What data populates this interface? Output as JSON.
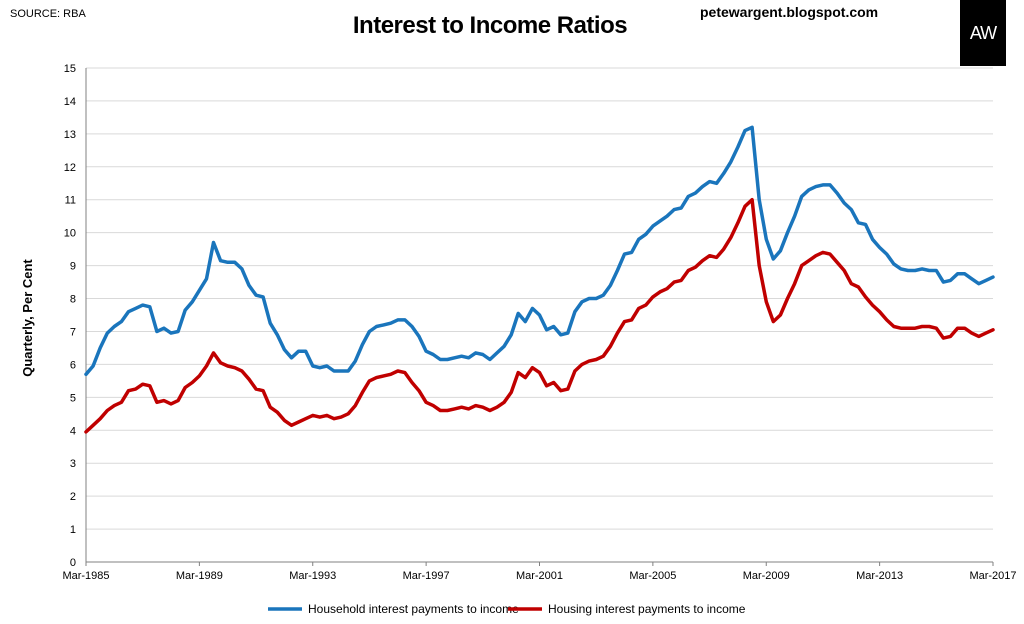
{
  "header": {
    "source": "SOURCE: RBA",
    "title": "Interest to Income Ratios",
    "blog": "petewargent.blogspot.com",
    "logo_text": "AW"
  },
  "colors": {
    "household": "#1a75bc",
    "housing": "#c00000",
    "grid": "#d9d9d9",
    "logo_bg": "#000000"
  },
  "chart_data": {
    "type": "line",
    "title": "Interest to Income Ratios",
    "xlabel": "",
    "ylabel": "Quarterly, Per Cent",
    "ylim": [
      0,
      15
    ],
    "yticks": [
      0,
      1,
      2,
      3,
      4,
      5,
      6,
      7,
      8,
      9,
      10,
      11,
      12,
      13,
      14,
      15
    ],
    "xlim": [
      1985.0,
      2017.0
    ],
    "xticks": [
      {
        "x": 1985,
        "label": "Mar-1985"
      },
      {
        "x": 1989,
        "label": "Mar-1989"
      },
      {
        "x": 1993,
        "label": "Mar-1993"
      },
      {
        "x": 1997,
        "label": "Mar-1997"
      },
      {
        "x": 2001,
        "label": "Mar-2001"
      },
      {
        "x": 2005,
        "label": "Mar-2005"
      },
      {
        "x": 2009,
        "label": "Mar-2009"
      },
      {
        "x": 2013,
        "label": "Mar-2013"
      },
      {
        "x": 2017,
        "label": "Mar-2017"
      }
    ],
    "grid": true,
    "legend": "bottom",
    "series": [
      {
        "name": "Household interest payments to income",
        "color": "#1a75bc",
        "points": [
          [
            1985.0,
            5.7
          ],
          [
            1985.25,
            5.95
          ],
          [
            1985.5,
            6.5
          ],
          [
            1985.75,
            6.95
          ],
          [
            1986.0,
            7.15
          ],
          [
            1986.25,
            7.3
          ],
          [
            1986.5,
            7.6
          ],
          [
            1986.75,
            7.7
          ],
          [
            1987.0,
            7.8
          ],
          [
            1987.25,
            7.75
          ],
          [
            1987.5,
            7.0
          ],
          [
            1987.75,
            7.1
          ],
          [
            1988.0,
            6.95
          ],
          [
            1988.25,
            7.0
          ],
          [
            1988.5,
            7.65
          ],
          [
            1988.75,
            7.9
          ],
          [
            1989.0,
            8.25
          ],
          [
            1989.25,
            8.6
          ],
          [
            1989.5,
            9.7
          ],
          [
            1989.75,
            9.15
          ],
          [
            1990.0,
            9.1
          ],
          [
            1990.25,
            9.1
          ],
          [
            1990.5,
            8.9
          ],
          [
            1990.75,
            8.4
          ],
          [
            1991.0,
            8.1
          ],
          [
            1991.25,
            8.05
          ],
          [
            1991.5,
            7.25
          ],
          [
            1991.75,
            6.9
          ],
          [
            1992.0,
            6.45
          ],
          [
            1992.25,
            6.2
          ],
          [
            1992.5,
            6.4
          ],
          [
            1992.75,
            6.4
          ],
          [
            1993.0,
            5.95
          ],
          [
            1993.25,
            5.9
          ],
          [
            1993.5,
            5.95
          ],
          [
            1993.75,
            5.8
          ],
          [
            1994.0,
            5.8
          ],
          [
            1994.25,
            5.8
          ],
          [
            1994.5,
            6.1
          ],
          [
            1994.75,
            6.6
          ],
          [
            1995.0,
            7.0
          ],
          [
            1995.25,
            7.15
          ],
          [
            1995.5,
            7.2
          ],
          [
            1995.75,
            7.25
          ],
          [
            1996.0,
            7.35
          ],
          [
            1996.25,
            7.35
          ],
          [
            1996.5,
            7.15
          ],
          [
            1996.75,
            6.85
          ],
          [
            1997.0,
            6.4
          ],
          [
            1997.25,
            6.3
          ],
          [
            1997.5,
            6.15
          ],
          [
            1997.75,
            6.15
          ],
          [
            1998.0,
            6.2
          ],
          [
            1998.25,
            6.25
          ],
          [
            1998.5,
            6.2
          ],
          [
            1998.75,
            6.35
          ],
          [
            1999.0,
            6.3
          ],
          [
            1999.25,
            6.15
          ],
          [
            1999.5,
            6.35
          ],
          [
            1999.75,
            6.55
          ],
          [
            2000.0,
            6.9
          ],
          [
            2000.25,
            7.55
          ],
          [
            2000.5,
            7.3
          ],
          [
            2000.75,
            7.7
          ],
          [
            2001.0,
            7.5
          ],
          [
            2001.25,
            7.05
          ],
          [
            2001.5,
            7.15
          ],
          [
            2001.75,
            6.9
          ],
          [
            2002.0,
            6.95
          ],
          [
            2002.25,
            7.6
          ],
          [
            2002.5,
            7.9
          ],
          [
            2002.75,
            8.0
          ],
          [
            2003.0,
            8.0
          ],
          [
            2003.25,
            8.1
          ],
          [
            2003.5,
            8.4
          ],
          [
            2003.75,
            8.85
          ],
          [
            2004.0,
            9.35
          ],
          [
            2004.25,
            9.4
          ],
          [
            2004.5,
            9.8
          ],
          [
            2004.75,
            9.95
          ],
          [
            2005.0,
            10.2
          ],
          [
            2005.25,
            10.35
          ],
          [
            2005.5,
            10.5
          ],
          [
            2005.75,
            10.7
          ],
          [
            2006.0,
            10.75
          ],
          [
            2006.25,
            11.1
          ],
          [
            2006.5,
            11.2
          ],
          [
            2006.75,
            11.4
          ],
          [
            2007.0,
            11.55
          ],
          [
            2007.25,
            11.5
          ],
          [
            2007.5,
            11.8
          ],
          [
            2007.75,
            12.15
          ],
          [
            2008.0,
            12.6
          ],
          [
            2008.25,
            13.1
          ],
          [
            2008.5,
            13.2
          ],
          [
            2008.75,
            11.0
          ],
          [
            2009.0,
            9.8
          ],
          [
            2009.25,
            9.2
          ],
          [
            2009.5,
            9.45
          ],
          [
            2009.75,
            10.0
          ],
          [
            2010.0,
            10.5
          ],
          [
            2010.25,
            11.1
          ],
          [
            2010.5,
            11.3
          ],
          [
            2010.75,
            11.4
          ],
          [
            2011.0,
            11.45
          ],
          [
            2011.25,
            11.45
          ],
          [
            2011.5,
            11.2
          ],
          [
            2011.75,
            10.9
          ],
          [
            2012.0,
            10.7
          ],
          [
            2012.25,
            10.3
          ],
          [
            2012.5,
            10.25
          ],
          [
            2012.75,
            9.8
          ],
          [
            2013.0,
            9.55
          ],
          [
            2013.25,
            9.35
          ],
          [
            2013.5,
            9.05
          ],
          [
            2013.75,
            8.9
          ],
          [
            2014.0,
            8.85
          ],
          [
            2014.25,
            8.85
          ],
          [
            2014.5,
            8.9
          ],
          [
            2014.75,
            8.85
          ],
          [
            2015.0,
            8.85
          ],
          [
            2015.25,
            8.5
          ],
          [
            2015.5,
            8.55
          ],
          [
            2015.75,
            8.75
          ],
          [
            2016.0,
            8.75
          ],
          [
            2016.25,
            8.6
          ],
          [
            2016.5,
            8.45
          ],
          [
            2016.75,
            8.55
          ],
          [
            2017.0,
            8.65
          ]
        ]
      },
      {
        "name": "Housing interest payments to income",
        "color": "#c00000",
        "points": [
          [
            1985.0,
            3.95
          ],
          [
            1985.25,
            4.15
          ],
          [
            1985.5,
            4.35
          ],
          [
            1985.75,
            4.6
          ],
          [
            1986.0,
            4.75
          ],
          [
            1986.25,
            4.85
          ],
          [
            1986.5,
            5.2
          ],
          [
            1986.75,
            5.25
          ],
          [
            1987.0,
            5.4
          ],
          [
            1987.25,
            5.35
          ],
          [
            1987.5,
            4.85
          ],
          [
            1987.75,
            4.9
          ],
          [
            1988.0,
            4.8
          ],
          [
            1988.25,
            4.9
          ],
          [
            1988.5,
            5.3
          ],
          [
            1988.75,
            5.45
          ],
          [
            1989.0,
            5.65
          ],
          [
            1989.25,
            5.95
          ],
          [
            1989.5,
            6.35
          ],
          [
            1989.75,
            6.05
          ],
          [
            1990.0,
            5.95
          ],
          [
            1990.25,
            5.9
          ],
          [
            1990.5,
            5.8
          ],
          [
            1990.75,
            5.55
          ],
          [
            1991.0,
            5.25
          ],
          [
            1991.25,
            5.2
          ],
          [
            1991.5,
            4.7
          ],
          [
            1991.75,
            4.55
          ],
          [
            1992.0,
            4.3
          ],
          [
            1992.25,
            4.15
          ],
          [
            1992.5,
            4.25
          ],
          [
            1992.75,
            4.35
          ],
          [
            1993.0,
            4.45
          ],
          [
            1993.25,
            4.4
          ],
          [
            1993.5,
            4.45
          ],
          [
            1993.75,
            4.35
          ],
          [
            1994.0,
            4.4
          ],
          [
            1994.25,
            4.5
          ],
          [
            1994.5,
            4.75
          ],
          [
            1994.75,
            5.15
          ],
          [
            1995.0,
            5.5
          ],
          [
            1995.25,
            5.6
          ],
          [
            1995.5,
            5.65
          ],
          [
            1995.75,
            5.7
          ],
          [
            1996.0,
            5.8
          ],
          [
            1996.25,
            5.75
          ],
          [
            1996.5,
            5.45
          ],
          [
            1996.75,
            5.2
          ],
          [
            1997.0,
            4.85
          ],
          [
            1997.25,
            4.75
          ],
          [
            1997.5,
            4.6
          ],
          [
            1997.75,
            4.6
          ],
          [
            1998.0,
            4.65
          ],
          [
            1998.25,
            4.7
          ],
          [
            1998.5,
            4.65
          ],
          [
            1998.75,
            4.75
          ],
          [
            1999.0,
            4.7
          ],
          [
            1999.25,
            4.6
          ],
          [
            1999.5,
            4.7
          ],
          [
            1999.75,
            4.85
          ],
          [
            2000.0,
            5.15
          ],
          [
            2000.25,
            5.75
          ],
          [
            2000.5,
            5.6
          ],
          [
            2000.75,
            5.9
          ],
          [
            2001.0,
            5.75
          ],
          [
            2001.25,
            5.35
          ],
          [
            2001.5,
            5.45
          ],
          [
            2001.75,
            5.2
          ],
          [
            2002.0,
            5.25
          ],
          [
            2002.25,
            5.8
          ],
          [
            2002.5,
            6.0
          ],
          [
            2002.75,
            6.1
          ],
          [
            2003.0,
            6.15
          ],
          [
            2003.25,
            6.25
          ],
          [
            2003.5,
            6.55
          ],
          [
            2003.75,
            6.95
          ],
          [
            2004.0,
            7.3
          ],
          [
            2004.25,
            7.35
          ],
          [
            2004.5,
            7.7
          ],
          [
            2004.75,
            7.8
          ],
          [
            2005.0,
            8.05
          ],
          [
            2005.25,
            8.2
          ],
          [
            2005.5,
            8.3
          ],
          [
            2005.75,
            8.5
          ],
          [
            2006.0,
            8.55
          ],
          [
            2006.25,
            8.85
          ],
          [
            2006.5,
            8.95
          ],
          [
            2006.75,
            9.15
          ],
          [
            2007.0,
            9.3
          ],
          [
            2007.25,
            9.25
          ],
          [
            2007.5,
            9.5
          ],
          [
            2007.75,
            9.85
          ],
          [
            2008.0,
            10.3
          ],
          [
            2008.25,
            10.8
          ],
          [
            2008.5,
            11.0
          ],
          [
            2008.75,
            9.0
          ],
          [
            2009.0,
            7.9
          ],
          [
            2009.25,
            7.3
          ],
          [
            2009.5,
            7.5
          ],
          [
            2009.75,
            8.0
          ],
          [
            2010.0,
            8.45
          ],
          [
            2010.25,
            9.0
          ],
          [
            2010.5,
            9.15
          ],
          [
            2010.75,
            9.3
          ],
          [
            2011.0,
            9.4
          ],
          [
            2011.25,
            9.35
          ],
          [
            2011.5,
            9.1
          ],
          [
            2011.75,
            8.85
          ],
          [
            2012.0,
            8.45
          ],
          [
            2012.25,
            8.35
          ],
          [
            2012.5,
            8.05
          ],
          [
            2012.75,
            7.8
          ],
          [
            2013.0,
            7.6
          ],
          [
            2013.25,
            7.35
          ],
          [
            2013.5,
            7.15
          ],
          [
            2013.75,
            7.1
          ],
          [
            2014.0,
            7.1
          ],
          [
            2014.25,
            7.1
          ],
          [
            2014.5,
            7.15
          ],
          [
            2014.75,
            7.15
          ],
          [
            2015.0,
            7.1
          ],
          [
            2015.25,
            6.8
          ],
          [
            2015.5,
            6.85
          ],
          [
            2015.75,
            7.1
          ],
          [
            2016.0,
            7.1
          ],
          [
            2016.25,
            6.95
          ],
          [
            2016.5,
            6.85
          ],
          [
            2016.75,
            6.95
          ],
          [
            2017.0,
            7.05
          ]
        ]
      }
    ]
  }
}
